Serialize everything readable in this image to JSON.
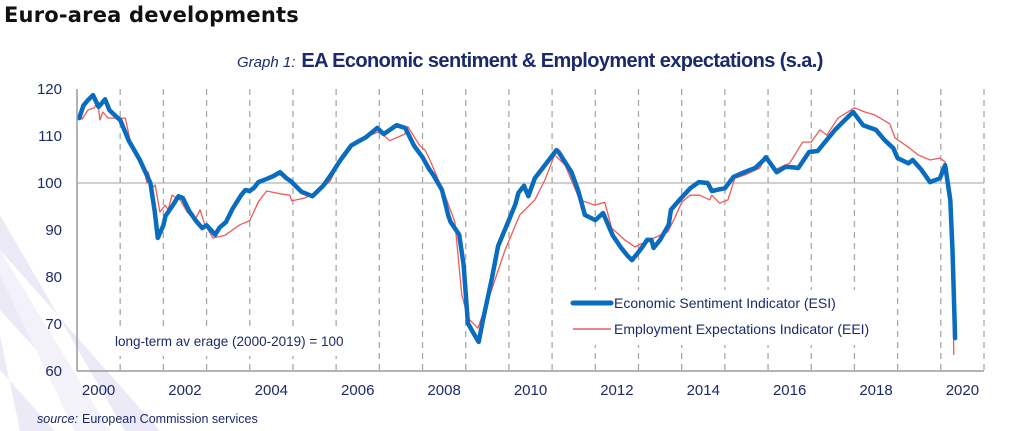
{
  "page": {
    "heading": "Euro-area developments",
    "source_label": "source:",
    "source_text": "European Commission services"
  },
  "chart_data": {
    "type": "line",
    "title_prefix": "Graph 1:",
    "title": "EA Economic sentiment & Employment expectations (s.a.)",
    "xlabel": "",
    "ylabel": "",
    "xlim": [
      2000,
      2021
    ],
    "ylim": [
      60,
      120
    ],
    "yticks": [
      60,
      70,
      80,
      90,
      100,
      110,
      120
    ],
    "xticks": [
      "2000",
      "2002",
      "2004",
      "2006",
      "2008",
      "2010",
      "2012",
      "2014",
      "2016",
      "2018",
      "2020"
    ],
    "reference_line": 100,
    "annotation": "long-term av erage (2000-2019) = 100",
    "grid": "vertical dashed at year boundaries",
    "legend_position": "bottom-right",
    "colors": {
      "esi": "#0a6cbf",
      "eei": "#f05a5a",
      "axis": "#9a9a9a",
      "text": "#1b2a6b"
    },
    "series": [
      {
        "key": "esi",
        "name": "Economic Sentiment Indicator (ESI)",
        "points": [
          [
            2000.05,
            113.8
          ],
          [
            2000.15,
            116.5
          ],
          [
            2000.25,
            117.6
          ],
          [
            2000.37,
            118.7
          ],
          [
            2000.5,
            116.2
          ],
          [
            2000.65,
            117.8
          ],
          [
            2000.75,
            115.5
          ],
          [
            2000.9,
            114.2
          ],
          [
            2001.0,
            113.4
          ],
          [
            2001.2,
            109.0
          ],
          [
            2001.45,
            105.0
          ],
          [
            2001.6,
            102.0
          ],
          [
            2001.7,
            100.0
          ],
          [
            2001.8,
            94.0
          ],
          [
            2001.87,
            88.3
          ],
          [
            2002.0,
            91.0
          ],
          [
            2002.05,
            93.0
          ],
          [
            2002.2,
            95.0
          ],
          [
            2002.35,
            97.2
          ],
          [
            2002.45,
            96.8
          ],
          [
            2002.6,
            94.0
          ],
          [
            2002.75,
            92.0
          ],
          [
            2002.9,
            90.4
          ],
          [
            2003.0,
            91.0
          ],
          [
            2003.2,
            89.0
          ],
          [
            2003.3,
            90.5
          ],
          [
            2003.45,
            91.7
          ],
          [
            2003.6,
            94.5
          ],
          [
            2003.8,
            97.4
          ],
          [
            2003.9,
            98.5
          ],
          [
            2004.0,
            98.3
          ],
          [
            2004.1,
            99.0
          ],
          [
            2004.2,
            100.2
          ],
          [
            2004.4,
            100.9
          ],
          [
            2004.55,
            101.5
          ],
          [
            2004.7,
            102.3
          ],
          [
            2004.85,
            101.0
          ],
          [
            2004.95,
            100.4
          ],
          [
            2005.2,
            98.1
          ],
          [
            2005.45,
            97.2
          ],
          [
            2005.7,
            99.4
          ],
          [
            2005.9,
            102.0
          ],
          [
            2006.1,
            104.9
          ],
          [
            2006.35,
            108.0
          ],
          [
            2006.7,
            109.8
          ],
          [
            2006.95,
            111.7
          ],
          [
            2007.1,
            110.4
          ],
          [
            2007.4,
            112.3
          ],
          [
            2007.6,
            111.7
          ],
          [
            2007.8,
            108.0
          ],
          [
            2008.0,
            105.5
          ],
          [
            2008.15,
            103.0
          ],
          [
            2008.25,
            101.7
          ],
          [
            2008.45,
            98.5
          ],
          [
            2008.6,
            93.0
          ],
          [
            2008.65,
            91.7
          ],
          [
            2008.85,
            89.0
          ],
          [
            2008.95,
            82.6
          ],
          [
            2009.05,
            70.2
          ],
          [
            2009.2,
            67.7
          ],
          [
            2009.3,
            66.2
          ],
          [
            2009.4,
            70.9
          ],
          [
            2009.6,
            79.4
          ],
          [
            2009.75,
            86.6
          ],
          [
            2010.0,
            92.1
          ],
          [
            2010.15,
            95.5
          ],
          [
            2010.22,
            97.9
          ],
          [
            2010.35,
            99.4
          ],
          [
            2010.45,
            97.2
          ],
          [
            2010.6,
            101.0
          ],
          [
            2010.8,
            103.4
          ],
          [
            2011.1,
            107.0
          ],
          [
            2011.15,
            106.6
          ],
          [
            2011.45,
            102.3
          ],
          [
            2011.6,
            98.5
          ],
          [
            2011.76,
            93.2
          ],
          [
            2012.0,
            92.1
          ],
          [
            2012.18,
            93.6
          ],
          [
            2012.4,
            88.9
          ],
          [
            2012.6,
            86.2
          ],
          [
            2012.75,
            84.5
          ],
          [
            2012.85,
            83.6
          ],
          [
            2013.0,
            85.3
          ],
          [
            2013.1,
            86.5
          ],
          [
            2013.2,
            87.9
          ],
          [
            2013.3,
            87.9
          ],
          [
            2013.35,
            86.2
          ],
          [
            2013.5,
            87.9
          ],
          [
            2013.7,
            91.1
          ],
          [
            2013.75,
            94.3
          ],
          [
            2013.95,
            96.4
          ],
          [
            2014.2,
            98.9
          ],
          [
            2014.4,
            100.2
          ],
          [
            2014.6,
            100.0
          ],
          [
            2014.7,
            98.3
          ],
          [
            2015.0,
            98.9
          ],
          [
            2015.2,
            101.3
          ],
          [
            2015.45,
            102.3
          ],
          [
            2015.7,
            103.2
          ],
          [
            2015.9,
            104.9
          ],
          [
            2015.95,
            105.5
          ],
          [
            2016.2,
            102.3
          ],
          [
            2016.4,
            103.4
          ],
          [
            2016.5,
            103.4
          ],
          [
            2016.7,
            103.2
          ],
          [
            2016.95,
            106.6
          ],
          [
            2017.15,
            106.8
          ],
          [
            2017.3,
            108.5
          ],
          [
            2017.55,
            111.3
          ],
          [
            2017.78,
            113.4
          ],
          [
            2017.97,
            115.1
          ],
          [
            2018.2,
            112.3
          ],
          [
            2018.5,
            111.3
          ],
          [
            2018.7,
            109.1
          ],
          [
            2018.9,
            107.4
          ],
          [
            2019.0,
            105.3
          ],
          [
            2019.25,
            104.2
          ],
          [
            2019.35,
            104.9
          ],
          [
            2019.55,
            102.8
          ],
          [
            2019.75,
            100.2
          ],
          [
            2019.98,
            101.0
          ],
          [
            2020.1,
            103.8
          ],
          [
            2020.22,
            96.4
          ],
          [
            2020.27,
            85.7
          ],
          [
            2020.33,
            67.0
          ]
        ]
      },
      {
        "key": "eei",
        "name": "Employment Expectations Indicator (EEI)",
        "points": [
          [
            2000.05,
            115.1
          ],
          [
            2000.12,
            113.6
          ],
          [
            2000.25,
            115.5
          ],
          [
            2000.4,
            116.0
          ],
          [
            2000.48,
            117.4
          ],
          [
            2000.53,
            113.4
          ],
          [
            2000.6,
            115.1
          ],
          [
            2000.72,
            113.8
          ],
          [
            2001.0,
            113.8
          ],
          [
            2001.12,
            113.8
          ],
          [
            2001.23,
            109.1
          ],
          [
            2001.58,
            101.7
          ],
          [
            2001.62,
            100.0
          ],
          [
            2001.65,
            102.3
          ],
          [
            2001.74,
            98.9
          ],
          [
            2001.81,
            99.6
          ],
          [
            2001.92,
            93.8
          ],
          [
            2002.04,
            95.3
          ],
          [
            2002.11,
            94.3
          ],
          [
            2002.2,
            97.4
          ],
          [
            2002.39,
            96.4
          ],
          [
            2002.55,
            93.8
          ],
          [
            2002.73,
            92.1
          ],
          [
            2002.85,
            94.3
          ],
          [
            2002.96,
            91.1
          ],
          [
            2003.15,
            88.3
          ],
          [
            2003.43,
            88.9
          ],
          [
            2003.77,
            91.1
          ],
          [
            2004.0,
            92.0
          ],
          [
            2004.2,
            96.0
          ],
          [
            2004.39,
            98.3
          ],
          [
            2004.7,
            97.7
          ],
          [
            2004.93,
            97.4
          ],
          [
            2004.97,
            96.2
          ],
          [
            2005.28,
            96.8
          ],
          [
            2005.62,
            98.5
          ],
          [
            2005.86,
            100.4
          ],
          [
            2006.2,
            106.6
          ],
          [
            2006.48,
            109.1
          ],
          [
            2006.78,
            110.2
          ],
          [
            2007.01,
            110.9
          ],
          [
            2007.24,
            109.0
          ],
          [
            2007.59,
            110.4
          ],
          [
            2007.66,
            112.0
          ],
          [
            2007.94,
            107.9
          ],
          [
            2008.06,
            107.0
          ],
          [
            2008.17,
            104.9
          ],
          [
            2008.52,
            97.4
          ],
          [
            2008.75,
            91.7
          ],
          [
            2008.91,
            76.2
          ],
          [
            2009.05,
            71.3
          ],
          [
            2009.28,
            69.1
          ],
          [
            2009.56,
            76.2
          ],
          [
            2009.91,
            85.7
          ],
          [
            2010.25,
            93.2
          ],
          [
            2010.6,
            96.4
          ],
          [
            2010.83,
            100.6
          ],
          [
            2011.06,
            106.0
          ],
          [
            2011.3,
            103.8
          ],
          [
            2011.64,
            96.4
          ],
          [
            2011.99,
            95.3
          ],
          [
            2012.22,
            95.9
          ],
          [
            2012.38,
            90.4
          ],
          [
            2012.68,
            87.9
          ],
          [
            2012.92,
            86.4
          ],
          [
            2013.26,
            87.9
          ],
          [
            2013.68,
            89.6
          ],
          [
            2013.84,
            92.6
          ],
          [
            2014.0,
            95.9
          ],
          [
            2014.19,
            97.4
          ],
          [
            2014.42,
            97.4
          ],
          [
            2014.65,
            96.4
          ],
          [
            2014.7,
            97.4
          ],
          [
            2014.88,
            95.7
          ],
          [
            2015.07,
            96.4
          ],
          [
            2015.23,
            101.0
          ],
          [
            2015.46,
            101.7
          ],
          [
            2015.81,
            103.2
          ],
          [
            2015.95,
            105.5
          ],
          [
            2016.16,
            102.8
          ],
          [
            2016.39,
            103.8
          ],
          [
            2016.5,
            104.2
          ],
          [
            2016.8,
            108.7
          ],
          [
            2017.0,
            108.7
          ],
          [
            2017.2,
            111.3
          ],
          [
            2017.36,
            110.2
          ],
          [
            2017.62,
            113.8
          ],
          [
            2018.0,
            116.0
          ],
          [
            2018.24,
            115.1
          ],
          [
            2018.47,
            114.5
          ],
          [
            2018.82,
            112.6
          ],
          [
            2018.94,
            109.6
          ],
          [
            2019.28,
            107.4
          ],
          [
            2019.47,
            106.0
          ],
          [
            2019.75,
            104.9
          ],
          [
            2019.98,
            105.3
          ],
          [
            2020.1,
            104.5
          ],
          [
            2020.24,
            94.3
          ],
          [
            2020.28,
            75.0
          ],
          [
            2020.3,
            63.4
          ]
        ]
      }
    ]
  }
}
